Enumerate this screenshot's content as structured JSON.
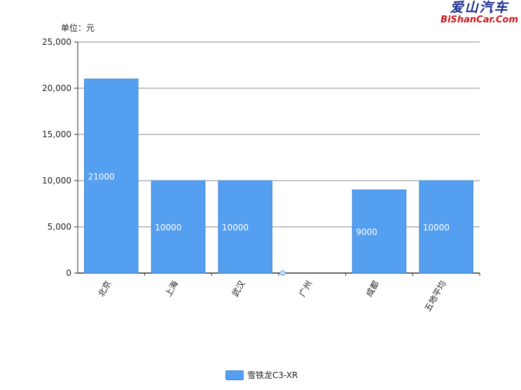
{
  "unit_label": "单位：元",
  "watermark": {
    "cn": "爱山汽车",
    "en": "BiShanCar.Com"
  },
  "legend": {
    "label": "雪铁龙C3-XR",
    "color": "#559ff0"
  },
  "chart_data": {
    "type": "bar",
    "categories": [
      "北京",
      "上海",
      "武汉",
      "广州",
      "成都",
      "五地平均"
    ],
    "series": [
      {
        "name": "雪铁龙C3-XR",
        "values": [
          21000,
          10000,
          10000,
          0,
          9000,
          10000
        ],
        "color": "#559ff0"
      }
    ],
    "data_labels": [
      "21000",
      "10000",
      "10000",
      "0",
      "9000",
      "10000"
    ],
    "ylim": [
      0,
      25000
    ],
    "yticks": [
      0,
      5000,
      10000,
      15000,
      20000,
      25000
    ],
    "ytick_labels": [
      "0",
      "5,000",
      "10,000",
      "15,000",
      "20,000",
      "25,000"
    ],
    "ylabel": "单位：元",
    "xlabel": "",
    "grid": true,
    "legend_position": "bottom"
  }
}
